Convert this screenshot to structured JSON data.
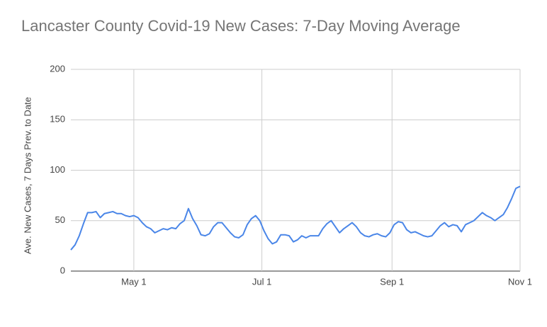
{
  "chart_data": {
    "type": "line",
    "title": "Lancaster County Covid-19 New Cases: 7-Day Moving Average",
    "y_label": "Ave. New Cases, 7 Days Prev. to Date",
    "x": [
      "04-01",
      "04-03",
      "04-05",
      "04-07",
      "04-09",
      "04-11",
      "04-13",
      "04-15",
      "04-17",
      "04-19",
      "04-21",
      "04-23",
      "04-25",
      "04-27",
      "04-29",
      "05-01",
      "05-03",
      "05-05",
      "05-07",
      "05-09",
      "05-11",
      "05-13",
      "05-15",
      "05-17",
      "05-19",
      "05-21",
      "05-23",
      "05-25",
      "05-27",
      "05-29",
      "05-31",
      "06-02",
      "06-04",
      "06-06",
      "06-08",
      "06-10",
      "06-12",
      "06-14",
      "06-16",
      "06-18",
      "06-20",
      "06-22",
      "06-24",
      "06-26",
      "06-28",
      "06-30",
      "07-02",
      "07-04",
      "07-06",
      "07-08",
      "07-10",
      "07-12",
      "07-14",
      "07-16",
      "07-18",
      "07-20",
      "07-22",
      "07-24",
      "07-26",
      "07-28",
      "07-30",
      "08-01",
      "08-03",
      "08-05",
      "08-07",
      "08-09",
      "08-11",
      "08-13",
      "08-15",
      "08-17",
      "08-19",
      "08-21",
      "08-23",
      "08-25",
      "08-27",
      "08-29",
      "08-31",
      "09-02",
      "09-04",
      "09-06",
      "09-08",
      "09-10",
      "09-12",
      "09-14",
      "09-16",
      "09-18",
      "09-20",
      "09-22",
      "09-24",
      "09-26",
      "09-28",
      "09-30",
      "10-02",
      "10-04",
      "10-06",
      "10-08",
      "10-10",
      "10-12",
      "10-14",
      "10-16",
      "10-18",
      "10-20",
      "10-22",
      "10-24",
      "10-26",
      "10-28",
      "10-30",
      "11-01"
    ],
    "series": [
      {
        "color": "#4a86e8",
        "values": [
          21,
          26,
          35,
          47,
          58,
          58,
          59,
          53,
          57,
          58,
          59,
          57,
          57,
          55,
          54,
          55,
          53,
          48,
          44,
          42,
          38,
          40,
          42,
          41,
          43,
          42,
          47,
          50,
          62,
          52,
          45,
          36,
          35,
          37,
          44,
          48,
          48,
          43,
          38,
          34,
          33,
          36,
          46,
          52,
          55,
          50,
          40,
          32,
          27,
          29,
          36,
          36,
          35,
          29,
          31,
          35,
          33,
          35,
          35,
          35,
          42,
          47,
          50,
          44,
          38,
          42,
          45,
          48,
          44,
          38,
          35,
          34,
          36,
          37,
          35,
          34,
          38,
          46,
          49,
          48,
          41,
          38,
          39,
          37,
          35,
          34,
          35,
          40,
          45,
          48,
          44,
          46,
          45,
          39,
          46,
          48,
          50,
          54,
          58,
          55,
          53,
          50,
          53,
          56,
          63,
          72,
          82,
          84
        ]
      }
    ],
    "xlim": [
      "04-01",
      "11-01"
    ],
    "xticks": [
      {
        "value": "05-01",
        "label": "May 1"
      },
      {
        "value": "07-01",
        "label": "Jul 1"
      },
      {
        "value": "09-01",
        "label": "Sep 1"
      },
      {
        "value": "11-01",
        "label": "Nov 1"
      }
    ],
    "ylim": [
      0,
      200
    ],
    "yticks": [
      0,
      50,
      100,
      150,
      200
    ],
    "grid": true
  }
}
